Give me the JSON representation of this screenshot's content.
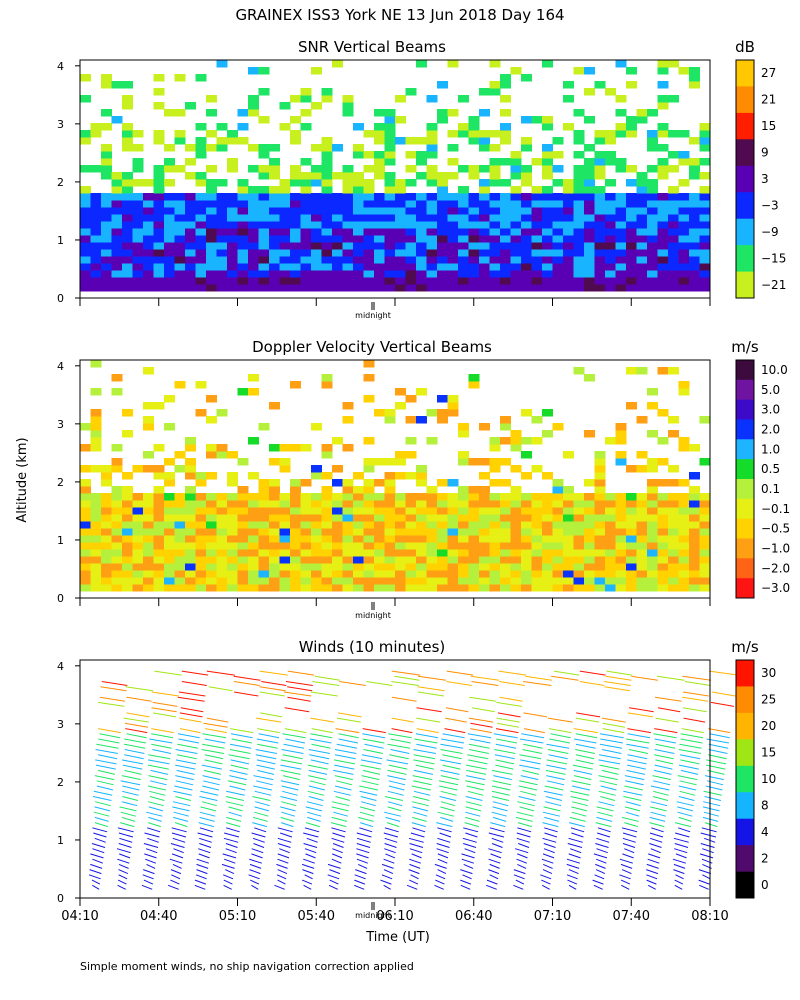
{
  "figure": {
    "title": "GRAINEX ISS3 York NE  13 Jun 2018 Day 164",
    "ylabel": "Altitude (km)",
    "xlabel": "Time (UT)",
    "midnight_label": "midnight",
    "footnote": "Simple moment winds, no ship navigation correction applied"
  },
  "chart_data": [
    {
      "type": "heatmap",
      "title": "SNR Vertical Beams",
      "x_ticks": [
        "04:10",
        "04:40",
        "05:10",
        "05:40",
        "06:10",
        "06:40",
        "07:10",
        "07:40",
        "08:10"
      ],
      "y_ticks": [
        0,
        1,
        2,
        3,
        4
      ],
      "ylim": [
        0,
        4.1
      ],
      "colorbar": {
        "unit": "dB",
        "labels": [
          "27",
          "21",
          "15",
          "9",
          "3",
          "−3",
          "−9",
          "−15",
          "−21"
        ],
        "colors": [
          "#ffc800",
          "#ff8c00",
          "#ff1e00",
          "#500a50",
          "#5a00b4",
          "#0a28ff",
          "#19b4ff",
          "#1ee664",
          "#c8f01e"
        ]
      }
    },
    {
      "type": "heatmap",
      "title": "Doppler Velocity Vertical Beams",
      "x_ticks": [
        "04:10",
        "04:40",
        "05:10",
        "05:40",
        "06:10",
        "06:40",
        "07:10",
        "07:40",
        "08:10"
      ],
      "y_ticks": [
        0,
        1,
        2,
        3,
        4
      ],
      "ylim": [
        0,
        4.1
      ],
      "colorbar": {
        "unit": "m/s",
        "labels": [
          "10.0",
          "5.0",
          "3.0",
          "2.0",
          "1.0",
          "0.5",
          "0.1",
          "−0.1",
          "−0.5",
          "−1.0",
          "−2.0",
          "−3.0"
        ],
        "colors": [
          "#3c0a3c",
          "#6e14a0",
          "#3c0ac8",
          "#0a32ff",
          "#1eb4ff",
          "#14dc28",
          "#b4f03c",
          "#e6f014",
          "#ffd200",
          "#ffa014",
          "#ff6414",
          "#ff1414"
        ]
      }
    },
    {
      "type": "scatter",
      "title": "Winds (10 minutes)",
      "x_ticks": [
        "04:10",
        "04:40",
        "05:10",
        "05:40",
        "06:10",
        "06:40",
        "07:10",
        "07:40",
        "08:10"
      ],
      "y_ticks": [
        0,
        1,
        2,
        3,
        4
      ],
      "ylim": [
        0,
        4.1
      ],
      "colorbar": {
        "unit": "m/s",
        "labels": [
          "30",
          "25",
          "20",
          "15",
          "10",
          "8",
          "4",
          "2",
          "0"
        ],
        "colors": [
          "#ff1400",
          "#ff8c00",
          "#ffb400",
          "#a0e614",
          "#1ee664",
          "#14b4ff",
          "#1414e6",
          "#500a6e",
          "#000000"
        ]
      }
    }
  ]
}
